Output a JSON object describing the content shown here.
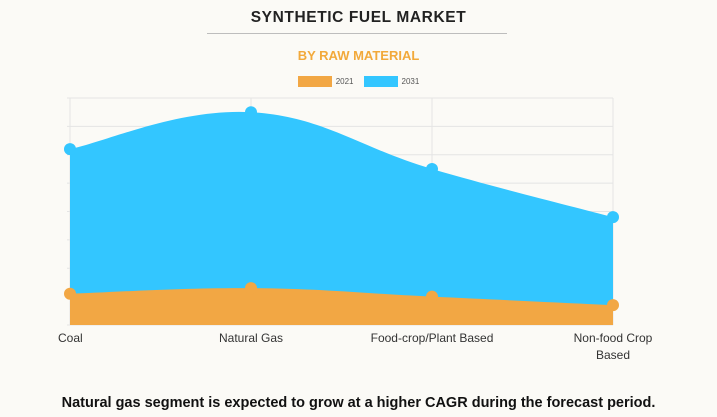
{
  "chart_data": {
    "type": "area",
    "title": "SYNTHETIC FUEL MARKET",
    "subtitle": "BY RAW MATERIAL",
    "categories": [
      "Coal",
      "Natural Gas",
      "Food-crop/Plant Based",
      "Non-food Crop Based"
    ],
    "series": [
      {
        "name": "2021",
        "color": "#f2a744",
        "values": [
          1.1,
          1.3,
          1.0,
          0.7
        ]
      },
      {
        "name": "2031",
        "color": "#33c6ff",
        "values": [
          6.2,
          7.5,
          5.5,
          3.8
        ]
      }
    ],
    "ylim": [
      0,
      8
    ],
    "grid": true,
    "legend_position": "top-center"
  },
  "footnote": "Natural gas segment is expected to grow at a higher CAGR during the forecast period."
}
